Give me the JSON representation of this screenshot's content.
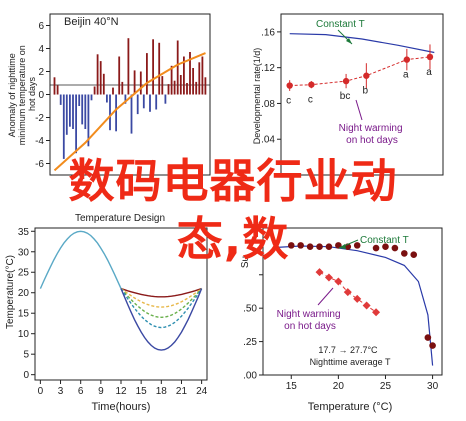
{
  "overlay": {
    "line1": "数码电器行业动",
    "line2": "态,数"
  },
  "chart_data": [
    {
      "type": "bar",
      "title": "Beijin 40°N",
      "ylabel": "Anomaly of nighttime minimum temperature on hot days",
      "yticks": [
        "6",
        "4",
        "2",
        "0",
        "-2",
        "-4",
        "-6"
      ],
      "ylim": [
        -7,
        7
      ],
      "bar_color": "#8b1a1a",
      "neg_color": "#3b49a3",
      "trend_color": "#f28c1d",
      "values": [
        1.5,
        0.8,
        -0.9,
        -5.6,
        -3.5,
        -2.8,
        -3.0,
        -5.1,
        -1.0,
        -2.6,
        -3.0,
        -4.5,
        -0.5,
        0.7,
        3.5,
        2.9,
        1.8,
        -0.7,
        -3.1,
        0.6,
        -3.2,
        3.3,
        1.1,
        -0.8,
        4.9,
        -3.4,
        2.1,
        -1.7,
        2.0,
        -1.2,
        3.6,
        -1.5,
        4.8,
        -1.3,
        4.5,
        1.6,
        -0.8,
        0.9,
        2.5,
        1.2,
        4.7,
        1.7,
        3.3,
        1.0,
        3.7,
        2.3,
        1.1,
        2.8,
        3.3,
        1.5
      ],
      "trend": [
        [
          0,
          -6.6
        ],
        [
          10,
          -4.2
        ],
        [
          20,
          -1.3
        ],
        [
          30,
          1.0
        ],
        [
          40,
          2.6
        ],
        [
          49,
          3.6
        ]
      ]
    },
    {
      "type": "scatter",
      "ylabel": "Developmental rate(1/d)",
      "yticks": [
        ".16",
        ".12",
        ".08",
        ".04",
        ""
      ],
      "ylim": [
        0,
        0.18
      ],
      "line_label": "Constant T",
      "annotation": "Night warming on hot days",
      "point_color": "#d42a2a",
      "line_color": "#2a3aa8",
      "line": [
        [
          0,
          0.158
        ],
        [
          0.25,
          0.157
        ],
        [
          0.5,
          0.152
        ],
        [
          0.75,
          0.145
        ],
        [
          1,
          0.137
        ]
      ],
      "points": [
        {
          "x": 0.0,
          "y": 0.1,
          "err": 0.006,
          "label": "c"
        },
        {
          "x": 0.15,
          "y": 0.101,
          "err": 0.004,
          "label": "c"
        },
        {
          "x": 0.39,
          "y": 0.105,
          "err": 0.008,
          "label": "bc"
        },
        {
          "x": 0.53,
          "y": 0.111,
          "err": 0.014,
          "label": "b"
        },
        {
          "x": 0.81,
          "y": 0.129,
          "err": 0.012,
          "label": "a"
        },
        {
          "x": 0.97,
          "y": 0.132,
          "err": 0.014,
          "label": "a"
        }
      ]
    },
    {
      "type": "line",
      "title": "Temperature Design",
      "ylabel": "Temperature(°C)",
      "xlabel": "Time(hours)",
      "xticks": [
        "0",
        "3",
        "6",
        "9",
        "12",
        "15",
        "18",
        "21",
        "24"
      ],
      "yticks": [
        "35",
        "30",
        "25",
        "20",
        "15",
        "10",
        "5",
        "0"
      ],
      "xlim": [
        0,
        24
      ],
      "ylim": [
        0,
        35
      ],
      "constant_color": "#5aa9c6",
      "series": [
        {
          "color": "#8b1a1a",
          "dash": "",
          "values": [
            [
              12,
              21
            ],
            [
              15,
              19
            ],
            [
              18,
              19
            ],
            [
              21,
              19
            ],
            [
              24,
              21
            ]
          ]
        },
        {
          "color": "#e8b84a",
          "dash": "3,2",
          "values": [
            [
              12,
              21
            ],
            [
              15,
              17
            ],
            [
              18,
              16.5
            ],
            [
              21,
              17
            ],
            [
              24,
              21
            ]
          ]
        },
        {
          "color": "#6ab04c",
          "dash": "3,2",
          "values": [
            [
              12,
              21
            ],
            [
              15,
              15.5
            ],
            [
              18,
              14
            ],
            [
              21,
              15.5
            ],
            [
              24,
              21
            ]
          ]
        },
        {
          "color": "#2f8fb0",
          "dash": "3,2",
          "values": [
            [
              12,
              21
            ],
            [
              15,
              14
            ],
            [
              18,
              11.5
            ],
            [
              21,
              14
            ],
            [
              24,
              21
            ]
          ]
        },
        {
          "color": "#3b49a3",
          "dash": "",
          "values": [
            [
              12,
              21
            ],
            [
              15,
              12
            ],
            [
              18,
              6
            ],
            [
              21,
              12
            ],
            [
              24,
              21
            ]
          ]
        }
      ],
      "constant": [
        [
          0,
          21
        ],
        [
          3,
          31
        ],
        [
          6,
          35
        ],
        [
          9,
          31
        ],
        [
          12,
          21
        ]
      ]
    },
    {
      "type": "scatter",
      "ylabel": "Su",
      "xlabel": "Temperature (°C)",
      "xticks": [
        "15",
        "20",
        "25",
        "30"
      ],
      "yticks": [
        "",
        ".50",
        ".25",
        ".00"
      ],
      "xlim": [
        12,
        31
      ],
      "ylim": [
        0,
        1.1
      ],
      "line_label": "Constant T",
      "annotation": "Night warming on hot days",
      "legend_line1": "17.7 → 27.7°C",
      "legend_line2": "Nighttime average T",
      "constant_color": "#2a3aa8",
      "dark_color": "#7a1010",
      "diamond_color": "#e03a3a",
      "constant_line": [
        [
          13.5,
          0.955
        ],
        [
          16,
          0.965
        ],
        [
          19,
          0.96
        ],
        [
          22,
          0.93
        ],
        [
          25,
          0.88
        ],
        [
          27,
          0.82
        ],
        [
          28.5,
          0.7
        ],
        [
          29.5,
          0.45
        ],
        [
          30,
          0.07
        ]
      ],
      "dark_points": [
        [
          15,
          0.97
        ],
        [
          16,
          0.97
        ],
        [
          17,
          0.96
        ],
        [
          18,
          0.96
        ],
        [
          19,
          0.96
        ],
        [
          20,
          0.97
        ],
        [
          21,
          0.96
        ],
        [
          22,
          0.97
        ],
        [
          24,
          0.95
        ],
        [
          25,
          0.96
        ],
        [
          26,
          0.95
        ],
        [
          27,
          0.91
        ],
        [
          28,
          0.9
        ],
        [
          29.5,
          0.28
        ],
        [
          30,
          0.22
        ]
      ],
      "diamond_points": [
        [
          18,
          0.77
        ],
        [
          19,
          0.73
        ],
        [
          20,
          0.7
        ],
        [
          21,
          0.62
        ],
        [
          22,
          0.57
        ],
        [
          23,
          0.52
        ],
        [
          24,
          0.47
        ]
      ]
    }
  ]
}
